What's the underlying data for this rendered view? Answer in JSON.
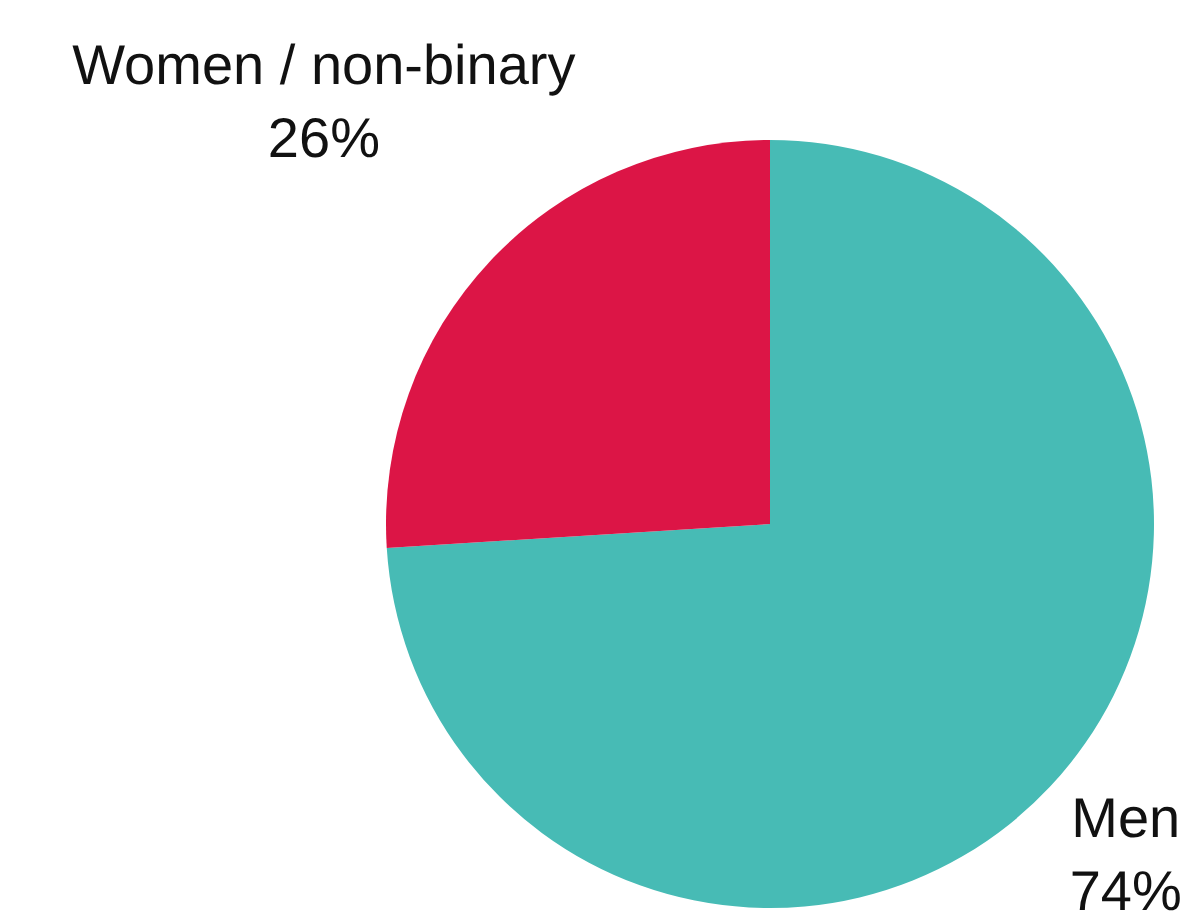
{
  "chart_data": {
    "type": "pie",
    "categories": [
      "Men",
      "Women / non-binary"
    ],
    "values": [
      74,
      26
    ],
    "value_labels": [
      "74%",
      "26%"
    ],
    "colors": [
      "#47bbb5",
      "#dc1546"
    ],
    "legend": false
  }
}
